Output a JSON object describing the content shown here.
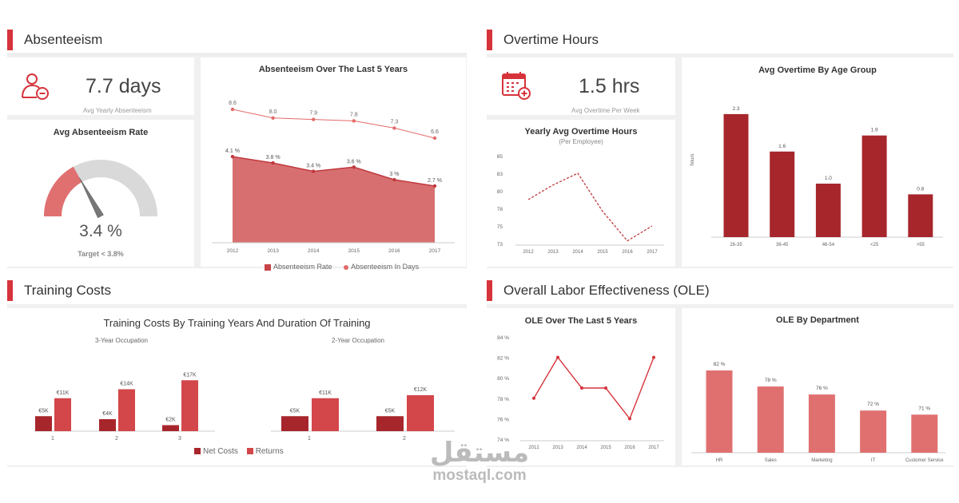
{
  "colors": {
    "accent": "#d6333b",
    "dark_red": "#a7262c",
    "red": "#d34649",
    "light_red": "#e07070",
    "area": "#d35f61",
    "grey_line": "#e46a6a"
  },
  "sections": {
    "absenteeism": "Absenteeism",
    "overtime": "Overtime Hours",
    "training": "Training Costs",
    "ole": "Overall Labor Effectiveness (OLE)"
  },
  "kpis": {
    "absent": {
      "icon": "user-minus-icon",
      "value": "7.7 days",
      "label": "Avg Yearly Absenteeism"
    },
    "overtime": {
      "icon": "calendar-add-icon",
      "value": "1.5 hrs",
      "label": "Avg Overtime Per Week"
    }
  },
  "gauge": {
    "title": "Avg Absenteeism Rate",
    "value": 3.4,
    "value_text": "3.4 %",
    "target_text": "Target < 3.8%"
  },
  "watermark": {
    "arabic": "مستقل",
    "latin": "mostaql.com"
  },
  "chart_data": [
    {
      "id": "absenteeism_5y",
      "type": "area",
      "title": "Absenteeism Over The Last 5 Years",
      "categories": [
        "2012",
        "2013",
        "2014",
        "2015",
        "2016",
        "2017"
      ],
      "series": [
        {
          "name": "Absenteeism Rate",
          "values": [
            4.1,
            3.8,
            3.4,
            3.6,
            3.0,
            2.7
          ],
          "labels": [
            "4.1 %",
            "3.8 %",
            "3.4 %",
            "3.6 %",
            "3 %",
            "2.7 %"
          ]
        },
        {
          "name": "Absenteeism In Days",
          "values": [
            8.6,
            8.0,
            7.9,
            7.8,
            7.3,
            6.6
          ],
          "labels": [
            "8.6",
            "8.0",
            "7.9",
            "7.8",
            "7.3",
            "6.6"
          ]
        }
      ]
    },
    {
      "id": "yearly_overtime",
      "type": "line",
      "title": "Yearly Avg Overtime Hours",
      "subtitle": "(Per Employee)",
      "categories": [
        "2012",
        "2013",
        "2014",
        "2015",
        "2016",
        "2017"
      ],
      "values": [
        79,
        81,
        83,
        77.5,
        73.3,
        75
      ],
      "yticks": [
        "73",
        "75",
        "78",
        "80",
        "83",
        "85"
      ],
      "ylim": [
        73,
        85
      ]
    },
    {
      "id": "overtime_age",
      "type": "bar",
      "title": "Avg Overtime By Age Group",
      "ylabel": "hours",
      "categories": [
        "26-35",
        "36-45",
        "46-54",
        "<25",
        ">55"
      ],
      "values": [
        2.3,
        1.6,
        1.0,
        1.9,
        0.8
      ],
      "labels": [
        "2.3",
        "1.6",
        "1.0",
        "1.9",
        "0.8"
      ],
      "ylim": [
        0,
        2.5
      ]
    },
    {
      "id": "training_costs",
      "type": "bar",
      "title": "Training Costs By Training Years And Duration Of Training",
      "groups": [
        {
          "name": "3-Year Occupation",
          "categories": [
            "1",
            "2",
            "3"
          ],
          "series": [
            {
              "name": "Net Costs",
              "values": [
                5,
                4,
                2
              ],
              "labels": [
                "€5K",
                "€4K",
                "€2K"
              ]
            },
            {
              "name": "Returns",
              "values": [
                11,
                14,
                17
              ],
              "labels": [
                "€11K",
                "€14K",
                "€17K"
              ]
            }
          ]
        },
        {
          "name": "2-Year Occupation",
          "categories": [
            "1",
            "2"
          ],
          "series": [
            {
              "name": "Net Costs",
              "values": [
                5,
                5
              ],
              "labels": [
                "€5K",
                "€5K"
              ]
            },
            {
              "name": "Returns",
              "values": [
                11,
                12
              ],
              "labels": [
                "€11K",
                "€12K"
              ]
            }
          ]
        }
      ],
      "legend": [
        "Net Costs",
        "Returns"
      ]
    },
    {
      "id": "ole_5y",
      "type": "line",
      "title": "OLE Over The Last 5 Years",
      "categories": [
        "2012",
        "2013",
        "2014",
        "2015",
        "2016",
        "2017"
      ],
      "values": [
        78,
        82,
        79,
        79,
        76,
        82
      ],
      "yticks": [
        "74 %",
        "76 %",
        "78 %",
        "80 %",
        "82 %",
        "84 %"
      ],
      "ylim": [
        74,
        84
      ]
    },
    {
      "id": "ole_department",
      "type": "bar",
      "title": "OLE By Department",
      "categories": [
        "HR",
        "Sales",
        "Marketing",
        "IT",
        "Customer Service"
      ],
      "values": [
        82,
        78,
        76,
        72,
        71
      ],
      "labels": [
        "82 %",
        "78 %",
        "76 %",
        "72 %",
        "71 %"
      ]
    }
  ]
}
